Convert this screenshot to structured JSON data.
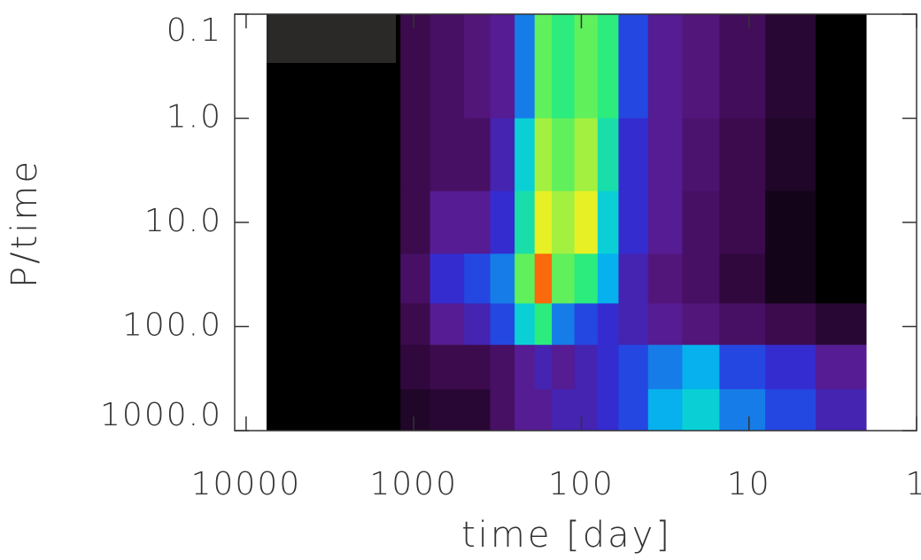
{
  "chart_data": {
    "type": "heatmap",
    "x_label": "time [day]",
    "y_label": "P/time",
    "xlim": [
      11700,
      1
    ],
    "xticks": [
      10000,
      1000,
      100,
      10,
      1
    ],
    "x_log": true,
    "ylim": [
      0.1,
      1000
    ],
    "yticks": [
      0.1,
      {
        "value": 1,
        "label": "1.0"
      },
      {
        "value": 10,
        "label": "10.0"
      },
      {
        "value": 100,
        "label": "100.0"
      },
      {
        "value": 1000,
        "label": "1000.0"
      }
    ],
    "y_log": true,
    "x_edges": [
      7550,
      1200,
      800,
      500,
      350,
      250,
      190,
      150,
      110,
      80,
      60,
      40,
      25,
      15,
      8,
      4,
      2
    ],
    "y_edges": [
      0.1,
      1,
      5,
      20,
      60,
      150,
      400,
      1000
    ],
    "z": [
      [
        0,
        0.15,
        0.2,
        0.25,
        0.3,
        0.5,
        0.75,
        0.7,
        0.75,
        0.7,
        0.45,
        0.3,
        0.25,
        0.18,
        0.1,
        0
      ],
      [
        0,
        0.15,
        0.2,
        0.2,
        0.35,
        0.6,
        0.8,
        0.75,
        0.8,
        0.65,
        0.4,
        0.3,
        0.22,
        0.15,
        0.08,
        0
      ],
      [
        0,
        0.15,
        0.3,
        0.3,
        0.4,
        0.65,
        0.85,
        0.8,
        0.85,
        0.6,
        0.4,
        0.3,
        0.2,
        0.15,
        0.05,
        0
      ],
      [
        0,
        0.2,
        0.4,
        0.45,
        0.5,
        0.75,
        0.95,
        0.75,
        0.7,
        0.55,
        0.35,
        0.25,
        0.2,
        0.12,
        0.05,
        0
      ],
      [
        0,
        0.15,
        0.3,
        0.35,
        0.45,
        0.6,
        0.7,
        0.5,
        0.45,
        0.4,
        0.35,
        0.3,
        0.25,
        0.2,
        0.15,
        0.1
      ],
      [
        0,
        0.12,
        0.15,
        0.15,
        0.2,
        0.3,
        0.35,
        0.3,
        0.35,
        0.4,
        0.45,
        0.5,
        0.55,
        0.45,
        0.4,
        0.3
      ],
      [
        0,
        0.08,
        0.1,
        0.1,
        0.2,
        0.3,
        0.3,
        0.35,
        0.35,
        0.4,
        0.45,
        0.55,
        0.6,
        0.5,
        0.45,
        0.35
      ]
    ],
    "zlim": [
      0,
      1
    ],
    "colormap": [
      "#000000",
      "#3a0a4a",
      "#5a1a8a",
      "#2a30e0",
      "#00c8f0",
      "#30f070",
      "#f0f020",
      "#ff2000"
    ]
  }
}
